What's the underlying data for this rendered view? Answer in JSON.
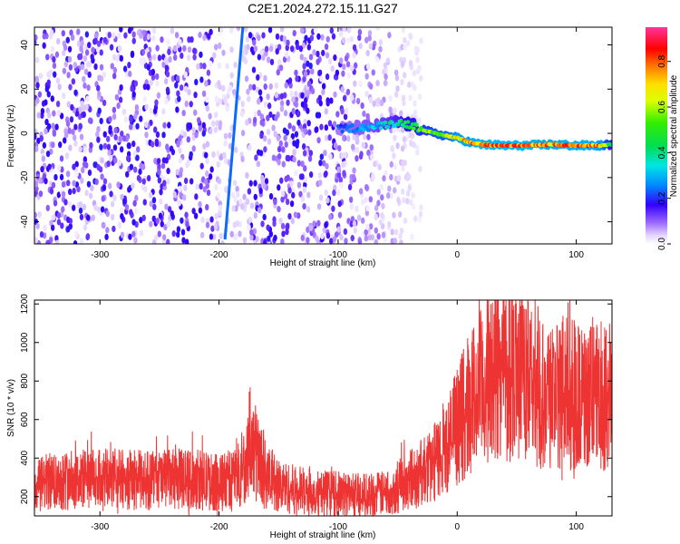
{
  "title": "C2E1.2024.272.15.11.G27",
  "chart_data": [
    {
      "type": "heatmap",
      "xlabel": "Height of straight line (km)",
      "ylabel": "Frequency (Hz)",
      "xlim": [
        -355,
        130
      ],
      "ylim": [
        -50,
        48
      ],
      "x_ticks": [
        -300,
        -200,
        -100,
        0,
        100
      ],
      "y_ticks": [
        -40,
        -20,
        0,
        20,
        40
      ],
      "colorbar": {
        "label": "Normalized spectral amplitude",
        "ticks": [
          0.0,
          0.2,
          0.4,
          0.6,
          0.8
        ],
        "range": [
          0,
          0.95
        ]
      },
      "features": {
        "diagonal_line": {
          "x": [
            -195,
            -180
          ],
          "y": [
            -48,
            48
          ],
          "amplitude": 0.25
        },
        "scatter_region": {
          "x": [
            -355,
            -30
          ],
          "y": [
            -50,
            48
          ],
          "amplitude": [
            0.05,
            0.2
          ]
        },
        "ridge": {
          "x": [
            -100,
            -70,
            -50,
            -40,
            -30,
            -20,
            -10,
            0,
            10,
            20,
            40,
            60,
            80,
            100,
            120,
            130
          ],
          "y": [
            2,
            3,
            5,
            4,
            2,
            0,
            -1,
            -2,
            -4,
            -5,
            -5.5,
            -5.5,
            -5,
            -5.5,
            -5.5,
            -5
          ],
          "amplitude": [
            0.25,
            0.35,
            0.45,
            0.55,
            0.6,
            0.65,
            0.7,
            0.8,
            0.85,
            0.9,
            0.9,
            0.9,
            0.85,
            0.9,
            0.85,
            0.5
          ]
        }
      }
    },
    {
      "type": "line",
      "xlabel": "Height of straight line (km)",
      "ylabel": "SNR (10 * v/v)",
      "xlim": [
        -355,
        130
      ],
      "ylim": [
        100,
        1220
      ],
      "x_ticks": [
        -300,
        -200,
        -100,
        0,
        100
      ],
      "y_ticks": [
        200,
        400,
        600,
        800,
        1000,
        1200
      ],
      "color": "#ee3333",
      "series": [
        {
          "x": [
            -355,
            -340,
            -320,
            -300,
            -280,
            -260,
            -240,
            -220,
            -200,
            -190,
            -180,
            -175,
            -170,
            -165,
            -160,
            -150,
            -140,
            -120,
            -100,
            -80,
            -60,
            -50,
            -40,
            -30,
            -20,
            -10,
            0,
            10,
            20,
            30,
            40,
            50,
            60,
            70,
            80,
            90,
            100,
            110,
            120,
            130
          ],
          "y": [
            260,
            280,
            290,
            290,
            290,
            285,
            290,
            290,
            270,
            290,
            330,
            420,
            450,
            380,
            300,
            260,
            240,
            220,
            215,
            210,
            215,
            250,
            290,
            320,
            370,
            450,
            560,
            690,
            760,
            830,
            880,
            870,
            800,
            750,
            730,
            740,
            720,
            700,
            720,
            760
          ]
        }
      ]
    }
  ]
}
